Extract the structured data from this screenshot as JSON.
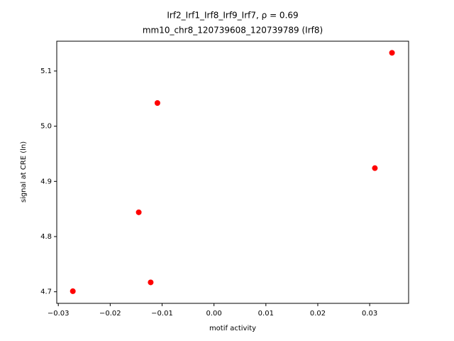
{
  "chart_data": {
    "type": "scatter",
    "title": [
      "Irf2_Irf1_Irf8_Irf9_Irf7, ρ = 0.69",
      "mm10_chr8_120739608_120739789 (Irf8)"
    ],
    "x_label": "motif activity",
    "y_label": "signal at CRE (ln)",
    "color": "#ff0000",
    "x": [
      0.0343,
      -0.0109,
      0.031,
      -0.0145,
      -0.0272,
      -0.0122
    ],
    "values": [
      5.133,
      5.042,
      4.924,
      4.844,
      4.701,
      4.717
    ],
    "xlim": [
      -0.0303,
      0.0375
    ],
    "ylim": [
      4.679,
      5.154
    ],
    "xticks": [
      {
        "value": -0.03,
        "label": "−0.03"
      },
      {
        "value": -0.02,
        "label": "−0.02"
      },
      {
        "value": -0.01,
        "label": "−0.01"
      },
      {
        "value": 0,
        "label": "0.00"
      },
      0.01,
      0.02,
      0.03
    ],
    "yticks": [
      4.7,
      4.8,
      4.9,
      {
        "value": 5.0,
        "label": "5.0"
      },
      5.1
    ]
  }
}
